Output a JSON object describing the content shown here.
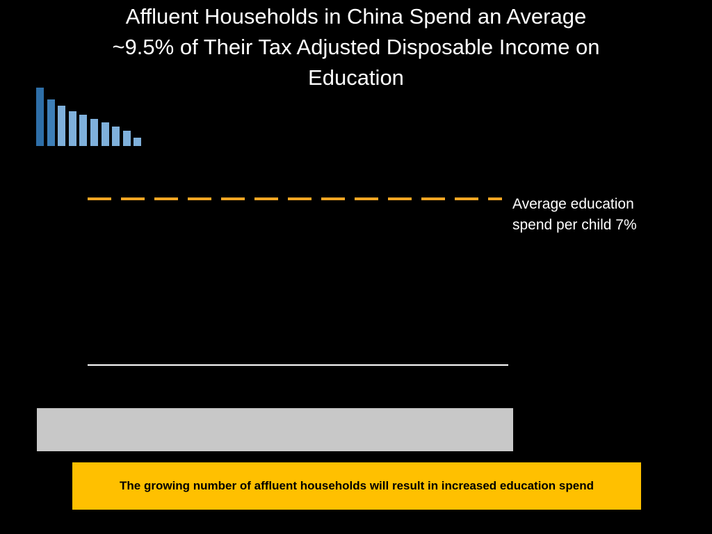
{
  "slide": {
    "title_lines": [
      "Affluent Households in China Spend an Average",
      "~9.5% of Their Tax Adjusted Disposable Income on",
      "Education"
    ],
    "callout": "The growing number of affluent households will result in increased education spend"
  },
  "logo": {
    "name": "bar-logo",
    "bar_levels": [
      1.0,
      0.8,
      0.69,
      0.6,
      0.54,
      0.47,
      0.4,
      0.33,
      0.26,
      0.14
    ],
    "colors": [
      "#2e6fa8",
      "#3d7fb8",
      "#7fb0db",
      "#7fb0db",
      "#7fb0db",
      "#7fb0db",
      "#7fb0db",
      "#7fb0db",
      "#7fb0db",
      "#7fb0db"
    ]
  },
  "chart_data": {
    "type": "line",
    "title": "",
    "xlabel": "",
    "ylabel": "",
    "series": [],
    "annotations": [
      {
        "kind": "reference-line",
        "style": "dashed",
        "color": "#f5a623",
        "value": 7,
        "unit": "%",
        "label_lines": [
          "Average education",
          "spend per child 7%"
        ]
      }
    ],
    "baseline_color": "#ffffff",
    "grid": false
  },
  "colors": {
    "background": "#000000",
    "accent": "#ffc000",
    "dash": "#f5a623",
    "panel": "#c8c8c8"
  }
}
